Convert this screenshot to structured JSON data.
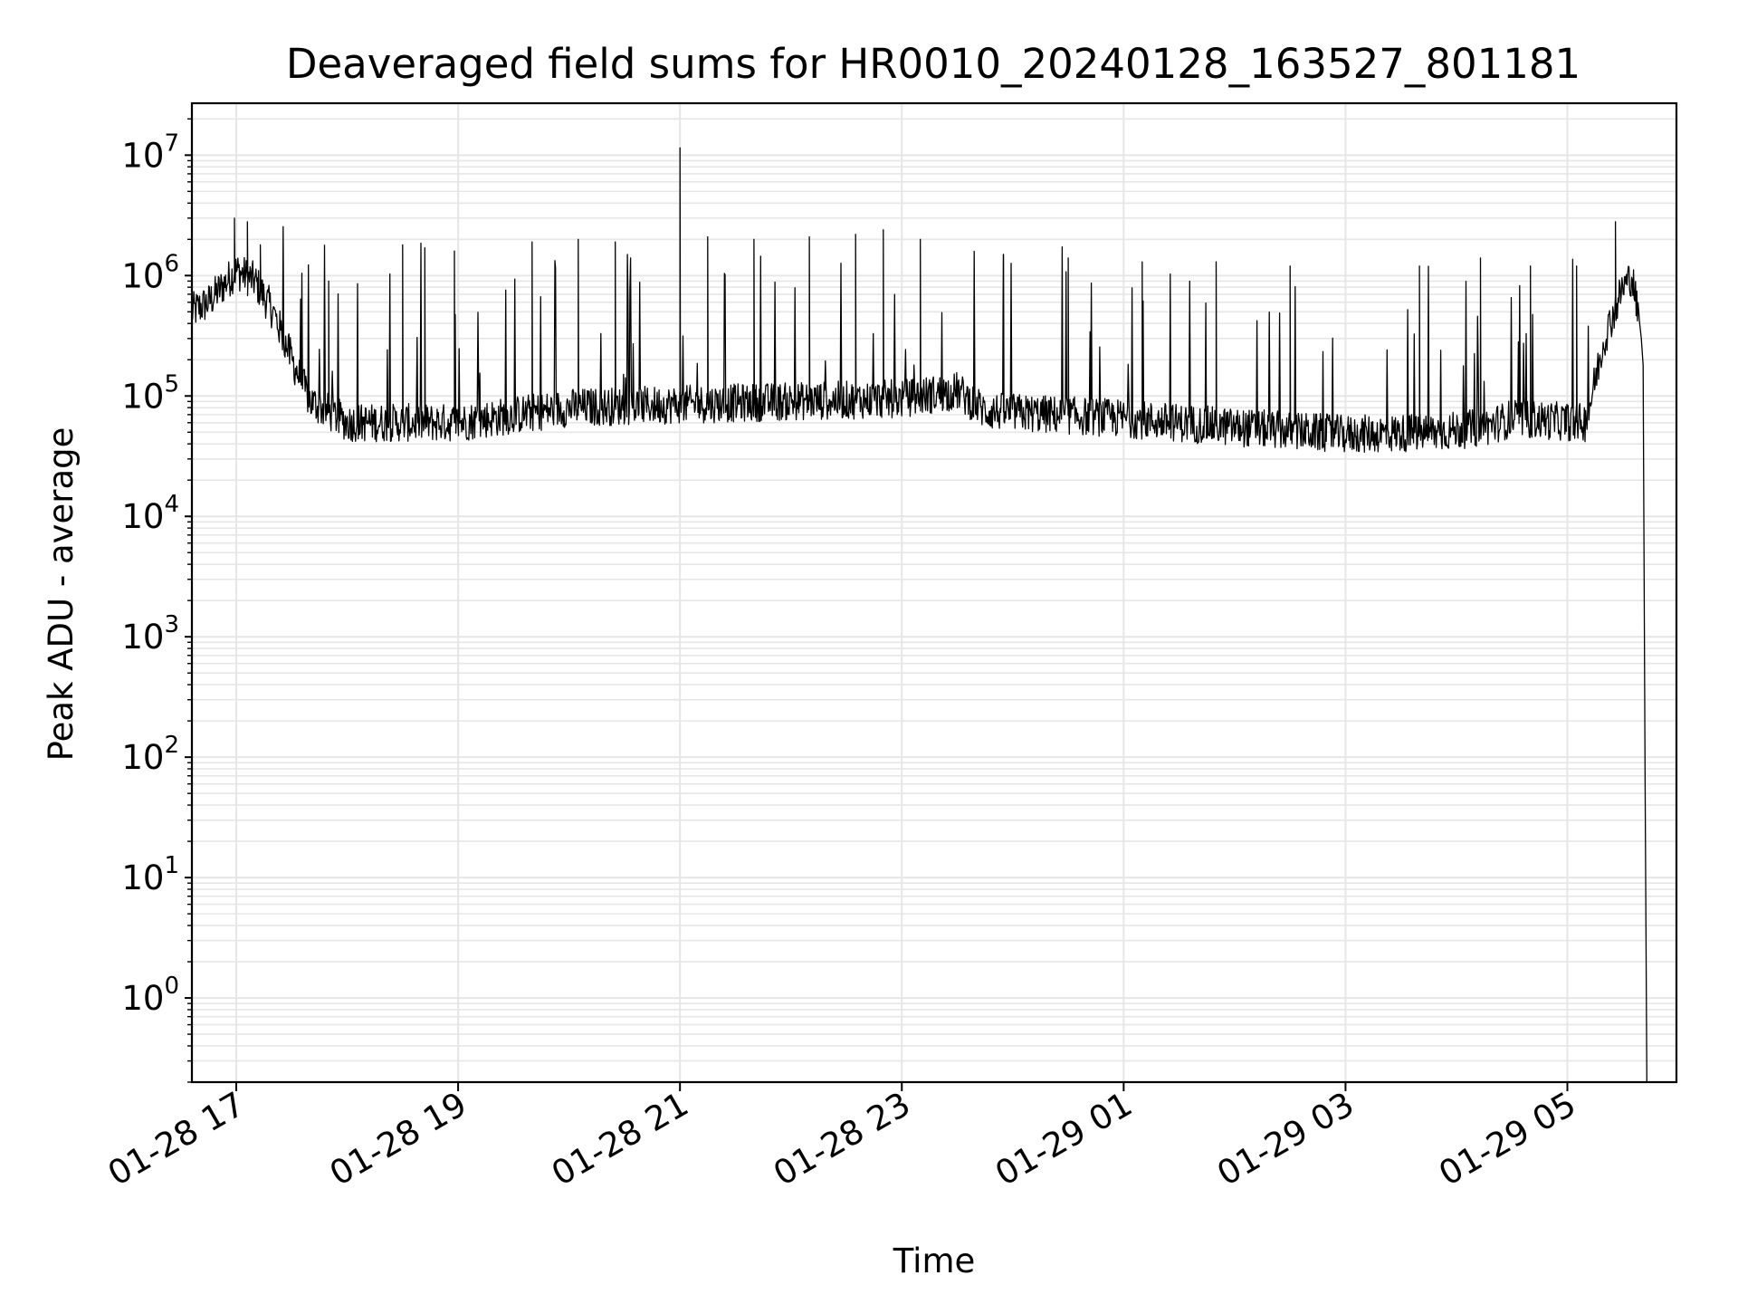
{
  "chart_data": {
    "type": "line",
    "title": "Deaveraged field sums for HR0010_20240128_163527_801181",
    "xlabel": "Time",
    "ylabel": "Peak ADU - average",
    "yscale": "log",
    "ylim": [
      0.2,
      27000000
    ],
    "xlim": [
      "2024-01-28 16:36",
      "2024-01-29 05:59"
    ],
    "grid": true,
    "line_color": "#000000",
    "grid_color": "#e6e6e6",
    "x_ticks": [
      {
        "value": "2024-01-28 17:00",
        "label": "01-28 17"
      },
      {
        "value": "2024-01-28 19:00",
        "label": "01-28 19"
      },
      {
        "value": "2024-01-28 21:00",
        "label": "01-28 21"
      },
      {
        "value": "2024-01-28 23:00",
        "label": "01-28 23"
      },
      {
        "value": "2024-01-29 01:00",
        "label": "01-29 01"
      },
      {
        "value": "2024-01-29 03:00",
        "label": "01-29 03"
      },
      {
        "value": "2024-01-29 05:00",
        "label": "01-29 05"
      }
    ],
    "y_ticks": [
      {
        "value": 1,
        "base": "10",
        "exp": "0"
      },
      {
        "value": 10,
        "base": "10",
        "exp": "1"
      },
      {
        "value": 100,
        "base": "10",
        "exp": "2"
      },
      {
        "value": 1000,
        "base": "10",
        "exp": "3"
      },
      {
        "value": 10000,
        "base": "10",
        "exp": "4"
      },
      {
        "value": 100000,
        "base": "10",
        "exp": "5"
      },
      {
        "value": 1000000,
        "base": "10",
        "exp": "6"
      },
      {
        "value": 10000000,
        "base": "10",
        "exp": "7"
      }
    ],
    "series": [
      {
        "baseline": [
          {
            "t": "2024-01-28 16:36",
            "y": 500000
          },
          {
            "t": "2024-01-28 16:45",
            "y": 600000
          },
          {
            "t": "2024-01-28 16:55",
            "y": 900000
          },
          {
            "t": "2024-01-28 17:00",
            "y": 1100000
          },
          {
            "t": "2024-01-28 17:10",
            "y": 900000
          },
          {
            "t": "2024-01-28 17:20",
            "y": 500000
          },
          {
            "t": "2024-01-28 17:30",
            "y": 200000
          },
          {
            "t": "2024-01-28 17:40",
            "y": 90000
          },
          {
            "t": "2024-01-28 18:00",
            "y": 60000
          },
          {
            "t": "2024-01-28 19:00",
            "y": 60000
          },
          {
            "t": "2024-01-28 20:00",
            "y": 80000
          },
          {
            "t": "2024-01-28 21:00",
            "y": 85000
          },
          {
            "t": "2024-01-28 22:00",
            "y": 90000
          },
          {
            "t": "2024-01-28 23:00",
            "y": 95000
          },
          {
            "t": "2024-01-28 23:30",
            "y": 110000
          },
          {
            "t": "2024-01-28 23:45",
            "y": 75000
          },
          {
            "t": "2024-01-29 01:00",
            "y": 65000
          },
          {
            "t": "2024-01-29 02:00",
            "y": 55000
          },
          {
            "t": "2024-01-29 03:00",
            "y": 48000
          },
          {
            "t": "2024-01-29 03:50",
            "y": 50000
          },
          {
            "t": "2024-01-29 04:15",
            "y": 55000
          },
          {
            "t": "2024-01-29 04:30",
            "y": 65000
          },
          {
            "t": "2024-01-29 05:10",
            "y": 60000
          },
          {
            "t": "2024-01-29 05:20",
            "y": 300000
          },
          {
            "t": "2024-01-29 05:30",
            "y": 800000
          },
          {
            "t": "2024-01-29 05:35",
            "y": 1000000
          },
          {
            "t": "2024-01-29 05:40",
            "y": 300000
          },
          {
            "t": "2024-01-29 05:41",
            "y": 180000
          },
          {
            "t": "2024-01-29 05:42",
            "y": 80
          },
          {
            "t": "2024-01-29 05:43",
            "y": 0.2
          }
        ],
        "spikes": [
          {
            "t": "2024-01-28 16:59",
            "y": 3000000
          },
          {
            "t": "2024-01-28 17:06",
            "y": 2800000
          },
          {
            "t": "2024-01-28 17:13",
            "y": 1800000
          },
          {
            "t": "2024-01-28 17:50",
            "y": 900000
          },
          {
            "t": "2024-01-28 18:30",
            "y": 1800000
          },
          {
            "t": "2024-01-28 18:42",
            "y": 1700000
          },
          {
            "t": "2024-01-28 18:58",
            "y": 1600000
          },
          {
            "t": "2024-01-28 19:40",
            "y": 1900000
          },
          {
            "t": "2024-01-28 20:05",
            "y": 2000000
          },
          {
            "t": "2024-01-28 20:25",
            "y": 1900000
          },
          {
            "t": "2024-01-28 21:00",
            "y": 11500000
          },
          {
            "t": "2024-01-28 21:15",
            "y": 2100000
          },
          {
            "t": "2024-01-28 21:40",
            "y": 2000000
          },
          {
            "t": "2024-01-28 22:10",
            "y": 2100000
          },
          {
            "t": "2024-01-28 22:35",
            "y": 2200000
          },
          {
            "t": "2024-01-28 22:50",
            "y": 2400000
          },
          {
            "t": "2024-01-28 23:10",
            "y": 2000000
          },
          {
            "t": "2024-01-28 23:55",
            "y": 1500000
          },
          {
            "t": "2024-01-29 00:30",
            "y": 1400000
          },
          {
            "t": "2024-01-29 01:10",
            "y": 1300000
          },
          {
            "t": "2024-01-29 01:50",
            "y": 1300000
          },
          {
            "t": "2024-01-29 02:30",
            "y": 1200000
          },
          {
            "t": "2024-01-29 03:40",
            "y": 1200000
          },
          {
            "t": "2024-01-29 04:13",
            "y": 1400000
          },
          {
            "t": "2024-01-29 04:40",
            "y": 1200000
          },
          {
            "t": "2024-01-29 05:05",
            "y": 1200000
          },
          {
            "t": "2024-01-29 05:26",
            "y": 2800000
          }
        ]
      }
    ]
  }
}
